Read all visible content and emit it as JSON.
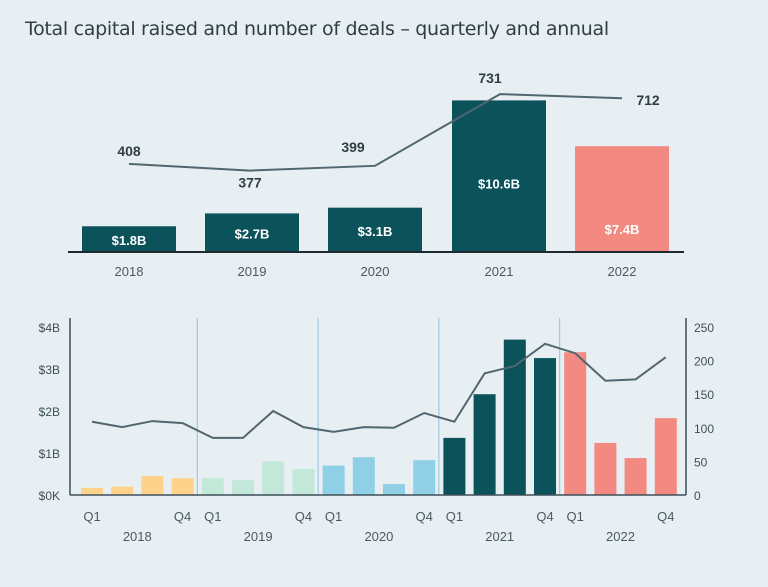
{
  "title": "Total capital raised and number of deals – quarterly and annual",
  "colors": {
    "teal": "#0b525b",
    "salmon": "#f28a82",
    "yellow": "#fdd38c",
    "mint": "#c3e8da",
    "lightblue": "#8fd0e6",
    "line": "#51666f",
    "background": "#e8eff3"
  },
  "chart_data": [
    {
      "type": "bar",
      "title": "",
      "categories": [
        "2018",
        "2019",
        "2020",
        "2021",
        "2022"
      ],
      "series": [
        {
          "type": "bar",
          "unit": "$B",
          "values": [
            1.8,
            2.7,
            3.1,
            10.6,
            7.4
          ],
          "labels": [
            "$1.8B",
            "$2.7B",
            "$3.1B",
            "$10.6B",
            "$7.4B"
          ],
          "colors": [
            "teal",
            "teal",
            "teal",
            "teal",
            "salmon"
          ]
        },
        {
          "type": "line",
          "values": [
            408,
            377,
            399,
            731,
            712
          ],
          "labels": [
            "408",
            "377",
            "399",
            "731",
            "712"
          ]
        }
      ]
    },
    {
      "type": "bar",
      "title": "",
      "groups": [
        "2018",
        "2019",
        "2020",
        "2021",
        "2022"
      ],
      "quarter_labels": [
        "Q1",
        "Q4"
      ],
      "left_axis": {
        "ticks": [
          "$0K",
          "$1B",
          "$2B",
          "$3B",
          "$4B"
        ],
        "range": [
          0,
          4
        ],
        "unit": "$B"
      },
      "right_axis": {
        "ticks": [
          "0",
          "50",
          "100",
          "150",
          "200",
          "250"
        ],
        "range": [
          0,
          250
        ]
      },
      "series": [
        {
          "type": "bar",
          "axis": "left",
          "values": [
            0.17,
            0.2,
            0.45,
            0.4,
            0.4,
            0.36,
            0.8,
            0.62,
            0.7,
            0.9,
            0.26,
            0.83,
            1.36,
            2.4,
            3.7,
            3.26,
            3.4,
            1.24,
            0.88,
            1.83
          ],
          "group_colors": [
            "yellow",
            "mint",
            "lightblue",
            "teal",
            "salmon"
          ]
        },
        {
          "type": "line",
          "axis": "right",
          "values": [
            109,
            101,
            110,
            107,
            85,
            85,
            125,
            101,
            94,
            101,
            100,
            122,
            109,
            181,
            192,
            225,
            211,
            170,
            172,
            205
          ]
        }
      ]
    }
  ]
}
